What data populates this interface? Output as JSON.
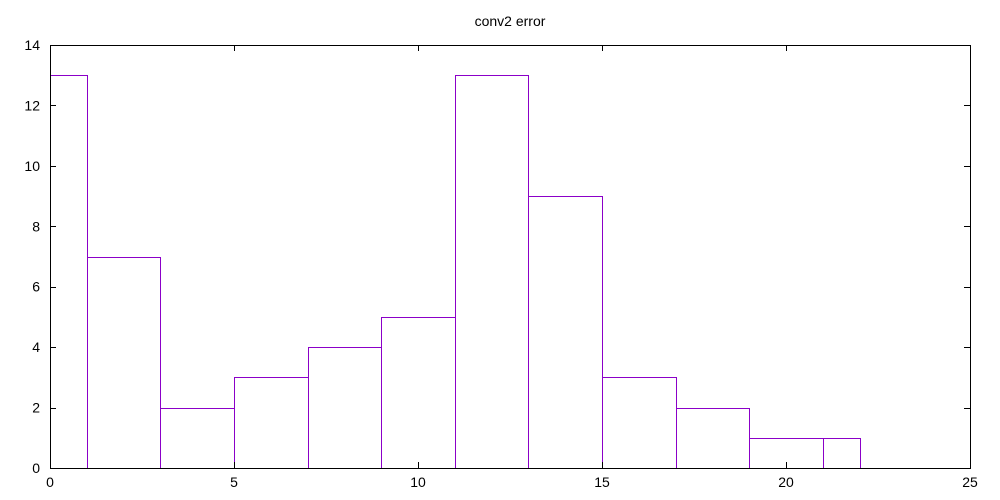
{
  "chart_data": {
    "type": "bar",
    "title": "conv2 error",
    "xlabel": "",
    "ylabel": "",
    "xlim": [
      0,
      25
    ],
    "ylim": [
      0,
      14
    ],
    "x_ticks": [
      0,
      5,
      10,
      15,
      20,
      25
    ],
    "y_ticks": [
      0,
      2,
      4,
      6,
      8,
      10,
      12,
      14
    ],
    "bar_color": "#8b00c8",
    "bins": [
      {
        "x0": 0,
        "x1": 1,
        "value": 13
      },
      {
        "x0": 1,
        "x1": 3,
        "value": 7
      },
      {
        "x0": 3,
        "x1": 5,
        "value": 2
      },
      {
        "x0": 5,
        "x1": 7,
        "value": 3
      },
      {
        "x0": 7,
        "x1": 9,
        "value": 4
      },
      {
        "x0": 9,
        "x1": 11,
        "value": 5
      },
      {
        "x0": 11,
        "x1": 13,
        "value": 13
      },
      {
        "x0": 13,
        "x1": 15,
        "value": 9
      },
      {
        "x0": 15,
        "x1": 17,
        "value": 3
      },
      {
        "x0": 17,
        "x1": 19,
        "value": 2
      },
      {
        "x0": 19,
        "x1": 21,
        "value": 1
      },
      {
        "x0": 21,
        "x1": 22,
        "value": 1
      }
    ]
  }
}
